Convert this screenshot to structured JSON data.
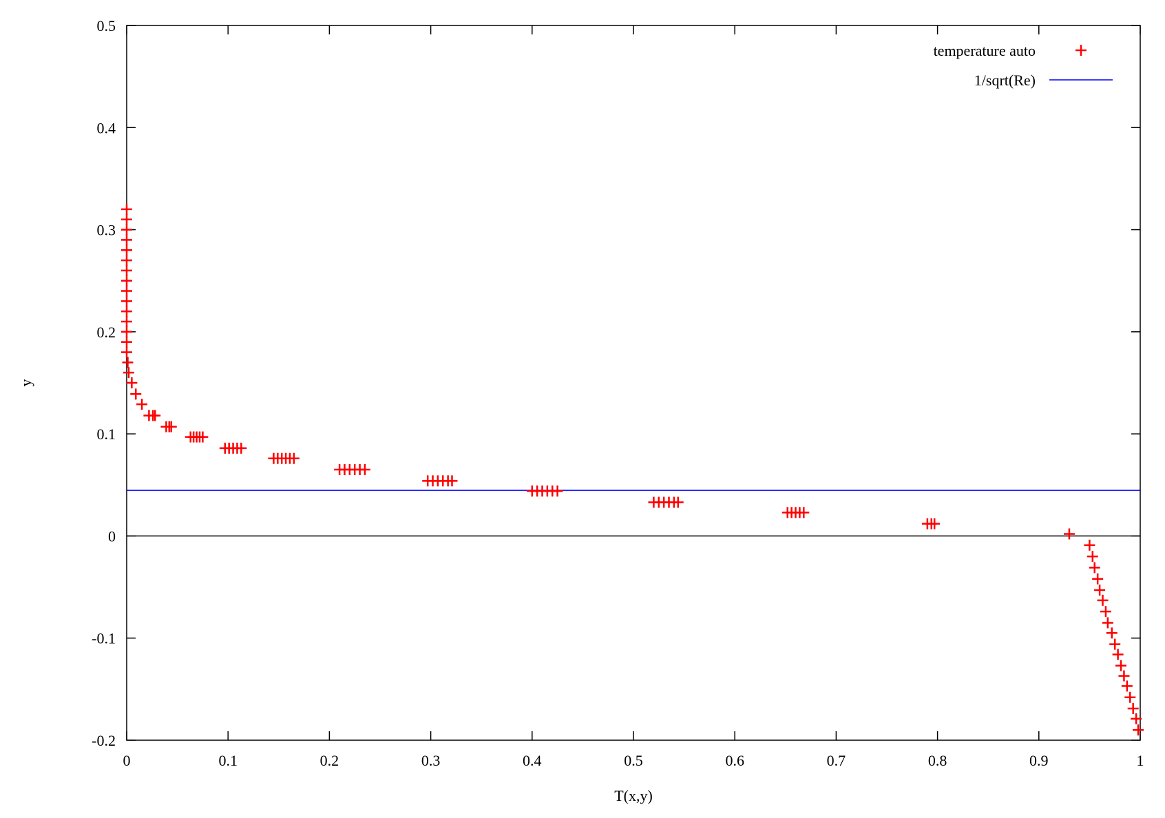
{
  "chart_data": {
    "type": "scatter",
    "xlabel": "T(x,y)",
    "ylabel": "y",
    "xlim": [
      0,
      1
    ],
    "ylim": [
      -0.2,
      0.5
    ],
    "xticks": [
      "0",
      "0.1",
      "0.2",
      "0.3",
      "0.4",
      "0.5",
      "0.6",
      "0.7",
      "0.8",
      "0.9",
      "1"
    ],
    "yticks": [
      "-0.2",
      "-0.1",
      "0",
      "0.1",
      "0.2",
      "0.3",
      "0.4",
      "0.5"
    ],
    "legend_position": "top-right",
    "zero_line": true,
    "series": [
      {
        "name": "temperature auto",
        "kind": "points",
        "marker": "plus",
        "color": "#ff0000",
        "points": [
          [
            0.0,
            0.32
          ],
          [
            0.0,
            0.31
          ],
          [
            0.0,
            0.3
          ],
          [
            0.0,
            0.29
          ],
          [
            0.0,
            0.28
          ],
          [
            0.0,
            0.27
          ],
          [
            0.0,
            0.26
          ],
          [
            0.0,
            0.25
          ],
          [
            0.0,
            0.24
          ],
          [
            0.0,
            0.23
          ],
          [
            0.0,
            0.22
          ],
          [
            0.0,
            0.21
          ],
          [
            0.0,
            0.2
          ],
          [
            0.0,
            0.19
          ],
          [
            0.0,
            0.18
          ],
          [
            0.001,
            0.17
          ],
          [
            0.002,
            0.16
          ],
          [
            0.005,
            0.15
          ],
          [
            0.009,
            0.139
          ],
          [
            0.015,
            0.129
          ],
          [
            0.022,
            0.118
          ],
          [
            0.026,
            0.118
          ],
          [
            0.028,
            0.118
          ],
          [
            0.039,
            0.107
          ],
          [
            0.042,
            0.107
          ],
          [
            0.044,
            0.107
          ],
          [
            0.063,
            0.097
          ],
          [
            0.066,
            0.097
          ],
          [
            0.069,
            0.097
          ],
          [
            0.072,
            0.097
          ],
          [
            0.075,
            0.097
          ],
          [
            0.097,
            0.086
          ],
          [
            0.101,
            0.086
          ],
          [
            0.105,
            0.086
          ],
          [
            0.109,
            0.086
          ],
          [
            0.113,
            0.086
          ],
          [
            0.145,
            0.076
          ],
          [
            0.149,
            0.076
          ],
          [
            0.153,
            0.076
          ],
          [
            0.157,
            0.076
          ],
          [
            0.161,
            0.076
          ],
          [
            0.165,
            0.076
          ],
          [
            0.21,
            0.065
          ],
          [
            0.215,
            0.065
          ],
          [
            0.22,
            0.065
          ],
          [
            0.225,
            0.065
          ],
          [
            0.23,
            0.065
          ],
          [
            0.235,
            0.065
          ],
          [
            0.297,
            0.054
          ],
          [
            0.302,
            0.054
          ],
          [
            0.307,
            0.054
          ],
          [
            0.312,
            0.054
          ],
          [
            0.317,
            0.054
          ],
          [
            0.321,
            0.054
          ],
          [
            0.4,
            0.044
          ],
          [
            0.405,
            0.044
          ],
          [
            0.41,
            0.044
          ],
          [
            0.415,
            0.044
          ],
          [
            0.42,
            0.044
          ],
          [
            0.425,
            0.044
          ],
          [
            0.52,
            0.033
          ],
          [
            0.525,
            0.033
          ],
          [
            0.53,
            0.033
          ],
          [
            0.535,
            0.033
          ],
          [
            0.54,
            0.033
          ],
          [
            0.544,
            0.033
          ],
          [
            0.652,
            0.023
          ],
          [
            0.656,
            0.023
          ],
          [
            0.66,
            0.023
          ],
          [
            0.664,
            0.023
          ],
          [
            0.668,
            0.023
          ],
          [
            0.79,
            0.012
          ],
          [
            0.794,
            0.012
          ],
          [
            0.797,
            0.012
          ],
          [
            0.93,
            0.002
          ],
          [
            0.95,
            -0.009
          ],
          [
            0.953,
            -0.02
          ],
          [
            0.955,
            -0.031
          ],
          [
            0.958,
            -0.042
          ],
          [
            0.96,
            -0.053
          ],
          [
            0.963,
            -0.063
          ],
          [
            0.966,
            -0.074
          ],
          [
            0.968,
            -0.085
          ],
          [
            0.972,
            -0.095
          ],
          [
            0.975,
            -0.106
          ],
          [
            0.978,
            -0.116
          ],
          [
            0.981,
            -0.127
          ],
          [
            0.984,
            -0.137
          ],
          [
            0.987,
            -0.147
          ],
          [
            0.99,
            -0.158
          ],
          [
            0.993,
            -0.169
          ],
          [
            0.996,
            -0.179
          ],
          [
            0.998,
            -0.19
          ]
        ]
      },
      {
        "name": "1/sqrt(Re)",
        "kind": "hline",
        "color": "#0000ff",
        "y": 0.0447
      }
    ]
  }
}
